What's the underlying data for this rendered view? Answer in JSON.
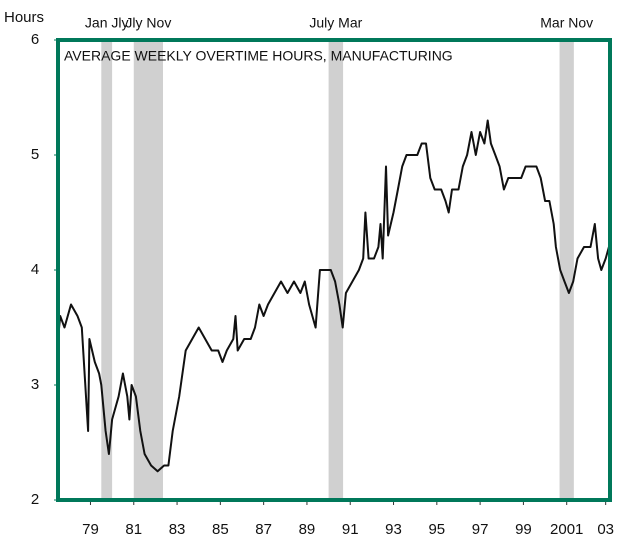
{
  "chart_data": {
    "type": "line",
    "title": "AVERAGE WEEKLY OVERTIME HOURS, MANUFACTURING",
    "y_label": "Hours",
    "color": "#111111",
    "frame_color": "#00785a",
    "shade_color": "#d0d0d0",
    "xlim": [
      1978,
      2003.5
    ],
    "ylim": [
      2,
      6
    ],
    "yticks": [
      2,
      3,
      4,
      5,
      6
    ],
    "xticks": [
      {
        "value": 1979.5,
        "label": "79"
      },
      {
        "value": 1981.5,
        "label": "81"
      },
      {
        "value": 1983.5,
        "label": "83"
      },
      {
        "value": 1985.5,
        "label": "85"
      },
      {
        "value": 1987.5,
        "label": "87"
      },
      {
        "value": 1989.5,
        "label": "89"
      },
      {
        "value": 1991.5,
        "label": "91"
      },
      {
        "value": 1993.5,
        "label": "93"
      },
      {
        "value": 1995.5,
        "label": "95"
      },
      {
        "value": 1997.5,
        "label": "97"
      },
      {
        "value": 1999.5,
        "label": "99"
      },
      {
        "value": 2001.5,
        "label": "2001"
      },
      {
        "value": 2003.3,
        "label": "03"
      }
    ],
    "recessions": [
      {
        "start": 1980.0,
        "end": 1980.5,
        "label": "Jan Jly"
      },
      {
        "start": 1981.5,
        "end": 1982.85,
        "label": "Jly Nov"
      },
      {
        "start": 1990.5,
        "end": 1991.17,
        "label": "July Mar"
      },
      {
        "start": 2001.17,
        "end": 2001.83,
        "label": "Mar Nov"
      }
    ],
    "x": [
      1978.0,
      1978.1,
      1978.3,
      1978.6,
      1978.9,
      1979.1,
      1979.39,
      1979.45,
      1979.7,
      1979.9,
      1980.0,
      1980.2,
      1980.35,
      1980.5,
      1980.8,
      1981.0,
      1981.2,
      1981.3,
      1981.4,
      1981.6,
      1981.8,
      1982.0,
      1982.3,
      1982.6,
      1982.9,
      1983.1,
      1983.3,
      1983.6,
      1983.9,
      1984.2,
      1984.5,
      1984.8,
      1985.1,
      1985.4,
      1985.6,
      1985.8,
      1986.1,
      1986.2,
      1986.3,
      1986.6,
      1986.9,
      1987.1,
      1987.3,
      1987.5,
      1987.7,
      1988.0,
      1988.3,
      1988.6,
      1988.9,
      1989.2,
      1989.4,
      1989.6,
      1989.9,
      1990.1,
      1990.3,
      1990.6,
      1990.8,
      1991.0,
      1991.15,
      1991.3,
      1991.6,
      1991.9,
      1992.1,
      1992.2,
      1992.35,
      1992.6,
      1992.8,
      1992.9,
      1993.0,
      1993.15,
      1993.25,
      1993.5,
      1993.7,
      1993.9,
      1994.1,
      1994.4,
      1994.6,
      1994.8,
      1995.0,
      1995.2,
      1995.4,
      1995.7,
      1995.9,
      1996.05,
      1996.2,
      1996.5,
      1996.7,
      1996.9,
      1997.1,
      1997.3,
      1997.5,
      1997.7,
      1997.85,
      1998.0,
      1998.2,
      1998.4,
      1998.6,
      1998.8,
      1999.1,
      1999.4,
      1999.6,
      1999.8,
      2000.1,
      2000.3,
      2000.5,
      2000.7,
      2000.9,
      2001.0,
      2001.2,
      2001.4,
      2001.6,
      2001.8,
      2002.0,
      2002.3,
      2002.6,
      2002.8,
      2002.95,
      2003.1,
      2003.3,
      2003.45
    ],
    "values": [
      3.4,
      3.6,
      3.5,
      3.7,
      3.6,
      3.5,
      2.6,
      3.4,
      3.2,
      3.1,
      3.0,
      2.6,
      2.4,
      2.7,
      2.9,
      3.1,
      2.9,
      2.7,
      3.0,
      2.9,
      2.6,
      2.4,
      2.3,
      2.25,
      2.3,
      2.3,
      2.6,
      2.9,
      3.3,
      3.4,
      3.5,
      3.4,
      3.3,
      3.3,
      3.2,
      3.3,
      3.4,
      3.6,
      3.3,
      3.4,
      3.4,
      3.5,
      3.7,
      3.6,
      3.7,
      3.8,
      3.9,
      3.8,
      3.9,
      3.8,
      3.9,
      3.7,
      3.5,
      4.0,
      4.0,
      4.0,
      3.9,
      3.7,
      3.5,
      3.8,
      3.9,
      4.0,
      4.1,
      4.5,
      4.1,
      4.1,
      4.2,
      4.4,
      4.1,
      4.9,
      4.3,
      4.5,
      4.7,
      4.9,
      5.0,
      5.0,
      5.0,
      5.1,
      5.1,
      4.8,
      4.7,
      4.7,
      4.6,
      4.5,
      4.7,
      4.7,
      4.9,
      5.0,
      5.2,
      5.0,
      5.2,
      5.1,
      5.3,
      5.1,
      5.0,
      4.9,
      4.7,
      4.8,
      4.8,
      4.8,
      4.9,
      4.9,
      4.9,
      4.8,
      4.6,
      4.6,
      4.4,
      4.2,
      4.0,
      3.9,
      3.8,
      3.9,
      4.1,
      4.2,
      4.2,
      4.4,
      4.1,
      4.0,
      4.1,
      4.2
    ]
  }
}
